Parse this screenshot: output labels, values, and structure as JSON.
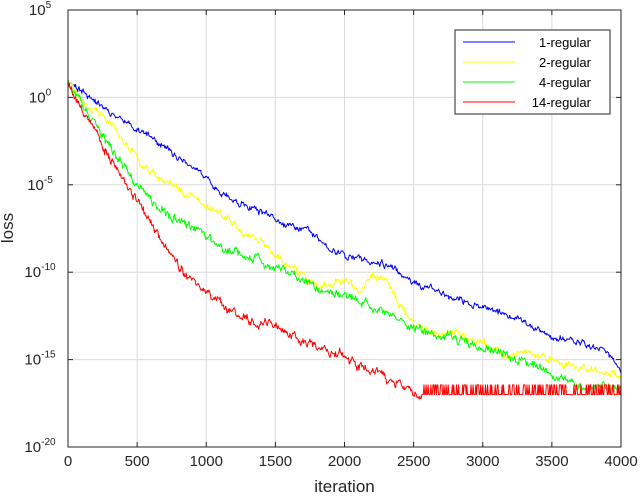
{
  "chart_data": {
    "type": "line",
    "xlabel": "iteration",
    "ylabel": "loss",
    "yscale": "log",
    "xlim": [
      0,
      4000
    ],
    "ylim_exponent": [
      -20,
      5
    ],
    "grid": true,
    "legend_position": "top-right",
    "x_ticks": [
      "0",
      "500",
      "1000",
      "1500",
      "2000",
      "2500",
      "3000",
      "3500",
      "4000"
    ],
    "y_ticks": [
      {
        "base": "10",
        "exp": "5",
        "value": 5
      },
      {
        "base": "10",
        "exp": "0",
        "value": 0
      },
      {
        "base": "10",
        "exp": "-5",
        "value": -5
      },
      {
        "base": "10",
        "exp": "-10",
        "value": -10
      },
      {
        "base": "10",
        "exp": "-15",
        "value": -15
      },
      {
        "base": "10",
        "exp": "-20",
        "value": -20
      }
    ],
    "series": [
      {
        "name": "1-regular",
        "color": "#0000ff",
        "noise": 0.25,
        "seed": 11,
        "x": [
          0,
          300,
          600,
          1000,
          1200,
          1400,
          1600,
          1750,
          1900,
          2100,
          2300,
          2500,
          2700,
          2900,
          3100,
          3300,
          3500,
          3700,
          3900,
          4000
        ],
        "log10_y": [
          1.0,
          -0.8,
          -2.3,
          -4.6,
          -6.0,
          -6.6,
          -7.4,
          -7.6,
          -8.8,
          -9.2,
          -9.6,
          -10.5,
          -11.2,
          -11.8,
          -12.2,
          -12.9,
          -13.7,
          -14.0,
          -14.6,
          -15.6
        ]
      },
      {
        "name": "2-regular",
        "color": "#ffff00",
        "noise": 0.3,
        "seed": 23,
        "x": [
          0,
          100,
          300,
          500,
          700,
          900,
          1100,
          1200,
          1400,
          1500,
          1700,
          1800,
          2000,
          2100,
          2200,
          2300,
          2400,
          2500,
          2600,
          2800,
          3000,
          3200,
          3400,
          3600,
          3800,
          4000
        ],
        "log10_y": [
          1.0,
          -0.2,
          -1.5,
          -3.5,
          -4.8,
          -5.7,
          -6.6,
          -7.3,
          -8.3,
          -9.1,
          -10.2,
          -10.8,
          -10.4,
          -11.2,
          -10.2,
          -10.5,
          -11.9,
          -12.8,
          -13.5,
          -13.5,
          -14.1,
          -14.8,
          -14.6,
          -15.3,
          -15.6,
          -16.0
        ]
      },
      {
        "name": "4-regular",
        "color": "#00ff00",
        "noise": 0.35,
        "seed": 37,
        "x": [
          0,
          100,
          300,
          500,
          700,
          900,
          1000,
          1100,
          1300,
          1500,
          1700,
          1900,
          2100,
          2300,
          2500,
          2700,
          2900,
          3100,
          3300,
          3500,
          3700,
          3800,
          3900,
          4000
        ],
        "log10_y": [
          1.0,
          -0.5,
          -2.8,
          -5.0,
          -6.6,
          -7.5,
          -8.0,
          -8.6,
          -9.0,
          -9.8,
          -10.6,
          -11.1,
          -11.6,
          -12.5,
          -13.1,
          -13.6,
          -14.0,
          -14.5,
          -15.1,
          -15.7,
          -16.4,
          -16.6,
          -16.5,
          -16.6
        ]
      },
      {
        "name": "14-regular",
        "color": "#ff0000",
        "noise": 0.35,
        "seed": 53,
        "floor": -17.0,
        "floor_x": 2560,
        "x": [
          0,
          100,
          200,
          300,
          400,
          500,
          600,
          700,
          800,
          900,
          1000,
          1100,
          1200,
          1300,
          1400,
          1500,
          1600,
          1700,
          1800,
          1900,
          2000,
          2100,
          2200,
          2300,
          2400,
          2500,
          2560
        ],
        "log10_y": [
          1.0,
          -0.6,
          -2.0,
          -3.4,
          -4.8,
          -5.9,
          -7.1,
          -8.4,
          -9.6,
          -10.6,
          -11.2,
          -11.8,
          -12.3,
          -12.6,
          -12.9,
          -13.0,
          -13.5,
          -13.9,
          -14.2,
          -14.6,
          -14.8,
          -15.4,
          -15.7,
          -16.1,
          -16.4,
          -16.8,
          -17.0
        ]
      }
    ]
  }
}
